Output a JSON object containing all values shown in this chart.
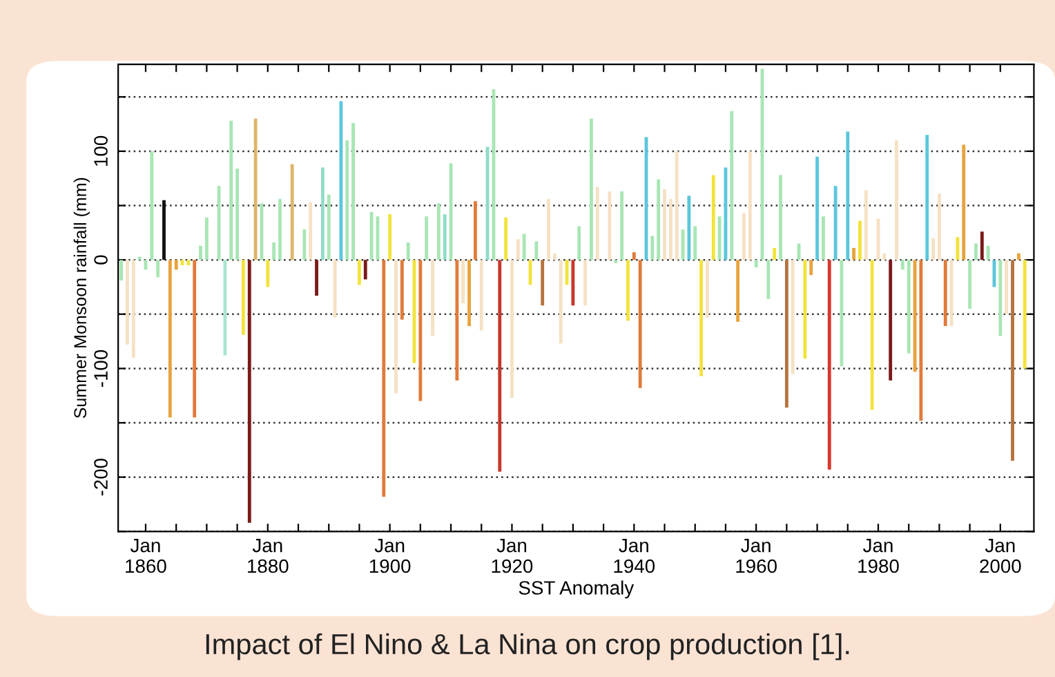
{
  "chart_data": {
    "type": "bar",
    "xlabel": "SST Anomaly",
    "ylabel": "Summer Monsoon rainfall (mm)",
    "annotations": [
      "Impact of El Nino & La Nina on crop production [1]."
    ],
    "x": [
      "1856",
      "1857",
      "1858",
      "1859",
      "1860",
      "1861",
      "1862",
      "1863",
      "1864",
      "1865",
      "1866",
      "1867",
      "1868",
      "1869",
      "1870",
      "1872",
      "1873",
      "1874",
      "1875",
      "1876",
      "1877",
      "1878",
      "1879",
      "1880",
      "1881",
      "1882",
      "1884",
      "1885",
      "1886",
      "1887",
      "1888",
      "1889",
      "1890",
      "1891",
      "1892",
      "1893",
      "1894",
      "1895",
      "1896",
      "1897",
      "1898",
      "1899",
      "1900",
      "1901",
      "1902",
      "1903",
      "1904",
      "1905",
      "1906",
      "1907",
      "1908",
      "1909",
      "1910",
      "1911",
      "1912",
      "1913",
      "1914",
      "1915",
      "1916",
      "1917",
      "1918",
      "1919",
      "1920",
      "1921",
      "1922",
      "1923",
      "1924",
      "1925",
      "1926",
      "1927",
      "1928",
      "1929",
      "1930",
      "1931",
      "1932",
      "1933",
      "1934",
      "1935",
      "1936",
      "1937",
      "1938",
      "1939",
      "1940",
      "1941",
      "1942",
      "1943",
      "1944",
      "1945",
      "1946",
      "1947",
      "1948",
      "1949",
      "1950",
      "1951",
      "1952",
      "1953",
      "1954",
      "1955",
      "1956",
      "1957",
      "1958",
      "1959",
      "1960",
      "1961",
      "1962",
      "1963",
      "1964",
      "1965",
      "1966",
      "1967",
      "1968",
      "1969",
      "1970",
      "1971",
      "1972",
      "1973",
      "1974",
      "1975",
      "1976",
      "1977",
      "1978",
      "1979",
      "1980",
      "1981",
      "1982",
      "1983",
      "1984",
      "1985",
      "1986",
      "1987",
      "1988",
      "1989",
      "1990",
      "1991",
      "1992",
      "1993",
      "1994",
      "1995",
      "1996",
      "1997",
      "1998",
      "1999",
      "2000",
      "2001",
      "2002",
      "2003",
      "2004"
    ],
    "values": [
      -19,
      -78,
      -90,
      3,
      -9,
      100,
      -16,
      55,
      -145,
      -9,
      -5,
      -5,
      -145,
      13,
      39,
      68,
      -88,
      128,
      84,
      -69,
      -242,
      130,
      52,
      -25,
      16,
      56,
      88,
      null,
      28,
      53,
      -33,
      85,
      60,
      -53,
      146,
      110,
      126,
      -23,
      -18,
      44,
      40,
      -218,
      42,
      -123,
      -55,
      16,
      -95,
      -130,
      40,
      -70,
      52,
      42,
      89,
      -111,
      -40,
      -61,
      54,
      -65,
      104,
      157,
      -195,
      39,
      -127,
      19,
      24,
      -23,
      17,
      -42,
      56,
      6,
      -77,
      -23,
      -42,
      31,
      -42,
      130,
      67,
      null,
      63,
      -3,
      63,
      -56,
      7,
      -118,
      113,
      22,
      74,
      65,
      56,
      100,
      28,
      59,
      31,
      -107,
      -53,
      78,
      40,
      85,
      137,
      -57,
      43,
      100,
      -7,
      176,
      -36,
      11,
      78,
      -136,
      -105,
      15,
      -91,
      -14,
      95,
      40,
      -193,
      68,
      -98,
      118,
      11,
      36,
      64,
      -138,
      38,
      6,
      -111,
      110,
      -9,
      -86,
      -103,
      -148,
      115,
      20,
      61,
      -61,
      -61,
      21,
      106,
      -45,
      15,
      26,
      13,
      -25,
      -70,
      -50,
      -185,
      6,
      -100
    ],
    "colors": [
      "#a8e6b4",
      "#f5e1c4",
      "#f5e1c4",
      "#a8e6b4",
      "#a8e6b4",
      "#a8e6b4",
      "#a8e6b4",
      "#111111",
      "#e8a33c",
      "#e8a33c",
      "#f2e33c",
      "#f2e33c",
      "#e07b39",
      "#a8e6b4",
      "#a8e6b4",
      "#a8e6b4",
      "#a8e6cf",
      "#a8e6b4",
      "#a8e6b4",
      "#f2e33c",
      "#7a1a1a",
      "#ddb56a",
      "#a8e6b4",
      "#f2e33c",
      "#a8e6b4",
      "#a8e6b4",
      "#ddb56a",
      "#f2e33c",
      "#a8e6b4",
      "#f5e1c4",
      "#7a1a1a",
      "#8fdcc8",
      "#a8e6b4",
      "#f5e1c4",
      "#5bc6dc",
      "#a8e6b4",
      "#a8e6b4",
      "#f2e33c",
      "#7a1a1a",
      "#a8e6b4",
      "#a8e6b4",
      "#e07b39",
      "#f2e33c",
      "#f5e1c4",
      "#e07b39",
      "#a8e6b4",
      "#f2e33c",
      "#e07b39",
      "#a8e6b4",
      "#f5e1c4",
      "#a8e6b4",
      "#8fdcc8",
      "#a8e6b4",
      "#e07b39",
      "#f5e1c4",
      "#e8a33c",
      "#e07b39",
      "#f5e1c4",
      "#8fdcc8",
      "#a8e6b4",
      "#c8382b",
      "#f2e33c",
      "#f5e1c4",
      "#f5e1c4",
      "#a8e6b4",
      "#f2e33c",
      "#a8e6b4",
      "#b5733f",
      "#f5e1c4",
      "#f5e1c4",
      "#f5e1c4",
      "#f2e33c",
      "#c8382b",
      "#a8e6b4",
      "#f5e1c4",
      "#a8e6b4",
      "#f5e1c4",
      "#a8e6b4",
      "#f5e1c4",
      "#a8e6b4",
      "#a8e6b4",
      "#f2e33c",
      "#e07b39",
      "#e07b39",
      "#5bc6dc",
      "#a8e6b4",
      "#a8e6b4",
      "#f5e1c4",
      "#f5e1c4",
      "#f5e1c4",
      "#a8e6b4",
      "#5bc6dc",
      "#a8e6b4",
      "#f2e33c",
      "#f5e1c4",
      "#f2e33c",
      "#a8e6b4",
      "#5bc6dc",
      "#a8e6b4",
      "#e8a33c",
      "#f5e1c4",
      "#f5e1c4",
      "#a8e6b4",
      "#a8e6b4",
      "#a8e6b4",
      "#f2e33c",
      "#a8e6b4",
      "#b5733f",
      "#f5e1c4",
      "#a8e6b4",
      "#f2e33c",
      "#e8a33c",
      "#5bc6dc",
      "#a8e6b4",
      "#d9362b",
      "#5bc6dc",
      "#a8e6b4",
      "#5bc6dc",
      "#e8a33c",
      "#f2e33c",
      "#f5e1c4",
      "#f2e33c",
      "#f5e1c4",
      "#f5e1c4",
      "#7a1a1a",
      "#f5e1c4",
      "#a8e6b4",
      "#a8e6b4",
      "#e8a33c",
      "#e07b39",
      "#5bc6dc",
      "#f5e1c4",
      "#f5e1c4",
      "#e07b39",
      "#f5e1c4",
      "#f2e33c",
      "#e8a33c",
      "#a8e6b4",
      "#a8e6b4",
      "#7a1a1a",
      "#a8e6b4",
      "#5bc6dc",
      "#a8e6b4",
      "#f5e1c4",
      "#b5733f",
      "#e8a33c",
      "#f2e33c"
    ],
    "xlim": [
      "1855-07",
      "2005-07"
    ],
    "xticks": [
      {
        "value": "1860",
        "label": "Jan\n1860"
      },
      {
        "value": "1865",
        "label": null
      },
      {
        "value": "1870",
        "label": null
      },
      {
        "value": "1875",
        "label": null
      },
      {
        "value": "1880",
        "label": "Jan\n1880"
      },
      {
        "value": "1885",
        "label": null
      },
      {
        "value": "1890",
        "label": null
      },
      {
        "value": "1895",
        "label": null
      },
      {
        "value": "1900",
        "label": "Jan\n1900"
      },
      {
        "value": "1905",
        "label": null
      },
      {
        "value": "1910",
        "label": null
      },
      {
        "value": "1915",
        "label": null
      },
      {
        "value": "1920",
        "label": "Jan\n1920"
      },
      {
        "value": "1925",
        "label": null
      },
      {
        "value": "1930",
        "label": null
      },
      {
        "value": "1935",
        "label": null
      },
      {
        "value": "1940",
        "label": "Jan\n1940"
      },
      {
        "value": "1945",
        "label": null
      },
      {
        "value": "1950",
        "label": null
      },
      {
        "value": "1955",
        "label": null
      },
      {
        "value": "1960",
        "label": "Jan\n1960"
      },
      {
        "value": "1965",
        "label": null
      },
      {
        "value": "1970",
        "label": null
      },
      {
        "value": "1975",
        "label": null
      },
      {
        "value": "1980",
        "label": "Jan\n1980"
      },
      {
        "value": "1985",
        "label": null
      },
      {
        "value": "1990",
        "label": null
      },
      {
        "value": "1995",
        "label": null
      },
      {
        "value": "2000",
        "label": "Jan\n2000"
      }
    ],
    "ylim": [
      -250,
      180
    ],
    "yticks": [
      {
        "value": -250,
        "label": null
      },
      -200,
      {
        "value": -150,
        "label": null
      },
      -100,
      {
        "value": -50,
        "label": null
      },
      0,
      {
        "value": 50,
        "label": null
      },
      100,
      {
        "value": 150,
        "label": null
      }
    ],
    "grid": "y"
  }
}
